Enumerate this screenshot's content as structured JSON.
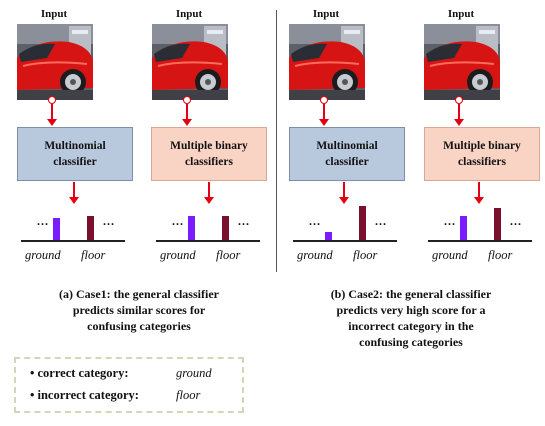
{
  "input_title": "Input",
  "classifiers": {
    "multinomial": [
      "Multinomial",
      "classifier"
    ],
    "binary": [
      "Multiple binary",
      "classifiers"
    ]
  },
  "ellipsis": "...",
  "categories": {
    "correct": "ground",
    "incorrect": "floor"
  },
  "captions": {
    "case1": [
      "(a) Case1: the general  classifier",
      "predicts similar scores for",
      "confusing categories"
    ],
    "case2": [
      "(b) Case2: the general classifier",
      "predicts very high score for a",
      "incorrect category in the",
      "confusing categories"
    ]
  },
  "legend": {
    "correct_label": "• correct category:",
    "correct_value": "ground",
    "incorrect_label": "• incorrect category:",
    "incorrect_value": "floor"
  },
  "colors": {
    "correct_bar": "#7a1cff",
    "incorrect_bar": "#7a0f2e",
    "arrow": "#e4000f",
    "multinomial_box": "#b8c9de",
    "binary_box": "#f9d3c4"
  },
  "panels": [
    {
      "classifier": "multinomial",
      "scores": {
        "ground": 0.5,
        "floor": 0.55
      }
    },
    {
      "classifier": "binary",
      "scores": {
        "ground": 0.55,
        "floor": 0.55
      }
    },
    {
      "classifier": "multinomial",
      "scores": {
        "ground": 0.18,
        "floor": 0.78
      }
    },
    {
      "classifier": "binary",
      "scores": {
        "ground": 0.55,
        "floor": 0.73
      }
    }
  ]
}
